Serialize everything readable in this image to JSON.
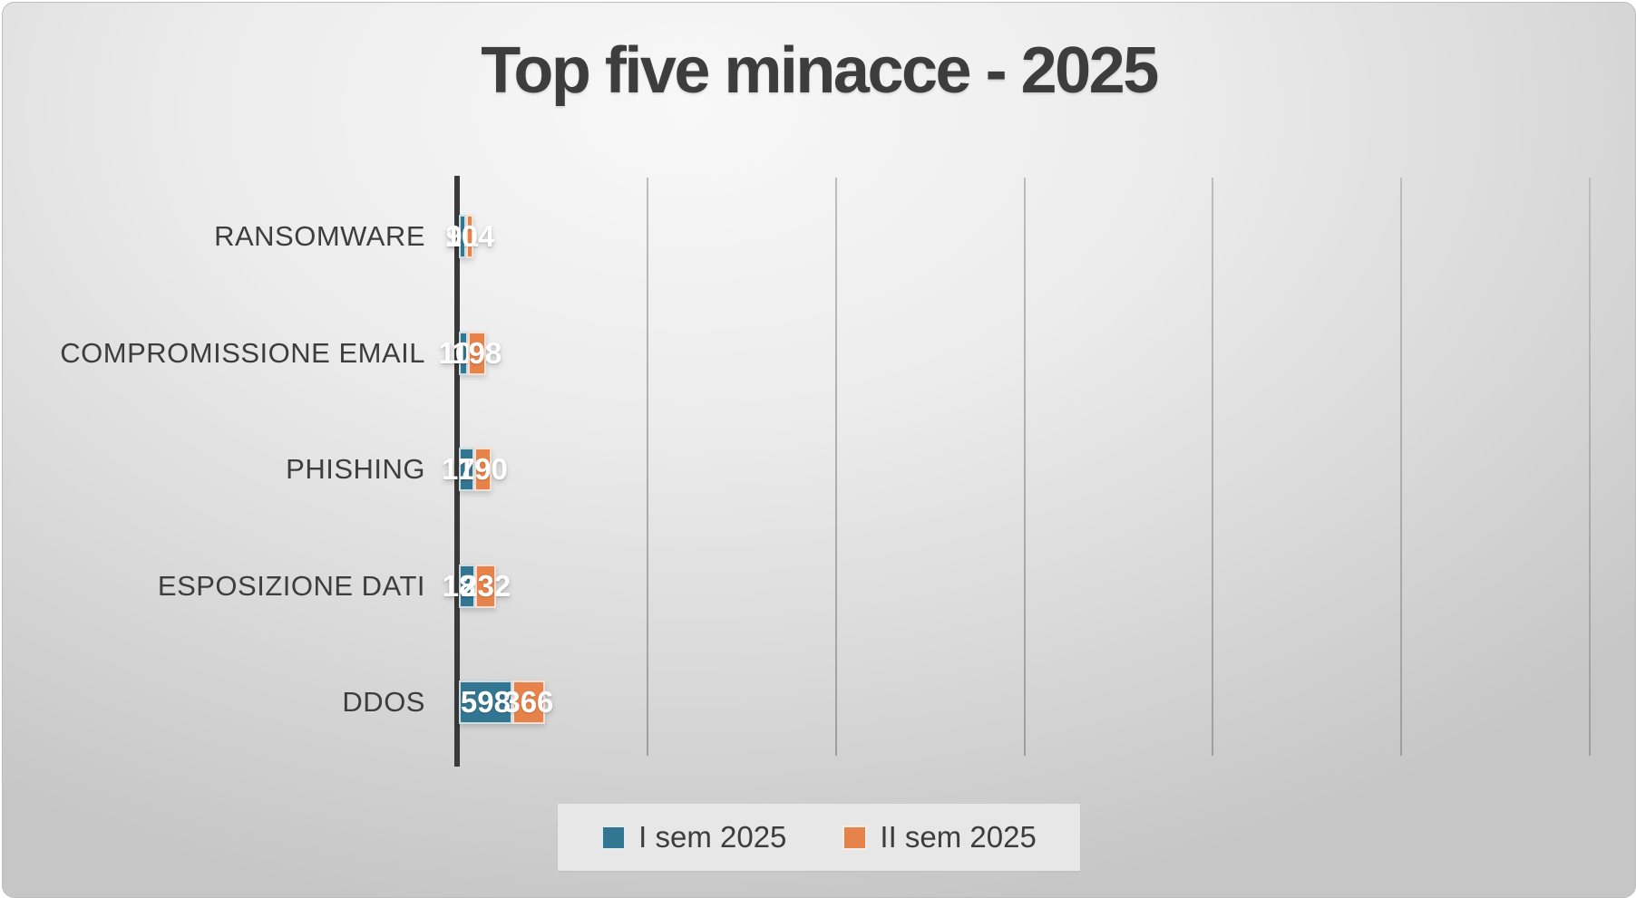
{
  "title": "Top five minacce - 2025",
  "chart_data": {
    "type": "bar",
    "orientation": "horizontal-stacked",
    "title": "Top five minacce - 2025",
    "categories": [
      "RANSOMWARE",
      "COMPROMISSIONE EMAIL",
      "PHISHING",
      "ESPOSIZIONE DATI",
      "DDOS"
    ],
    "series": [
      {
        "name": "I sem 2025",
        "color": "#337691",
        "values": [
          91,
          103,
          173,
          186,
          598
        ]
      },
      {
        "name": "II sem 2025",
        "color": "#E6834B",
        "values": [
          104,
          198,
          190,
          232,
          366
        ]
      }
    ],
    "xlim": [
      0,
      1200
    ],
    "gridline_interval": 200,
    "grid": true,
    "legend_position": "bottom",
    "value_labels": "inside-center",
    "colors": {
      "axis_line": "#3a3a3a",
      "gridline": "#a8a8a8",
      "category_text": "#3d3d3d",
      "value_text": "#ffffff",
      "legend_background": "#e7e7e7"
    }
  }
}
